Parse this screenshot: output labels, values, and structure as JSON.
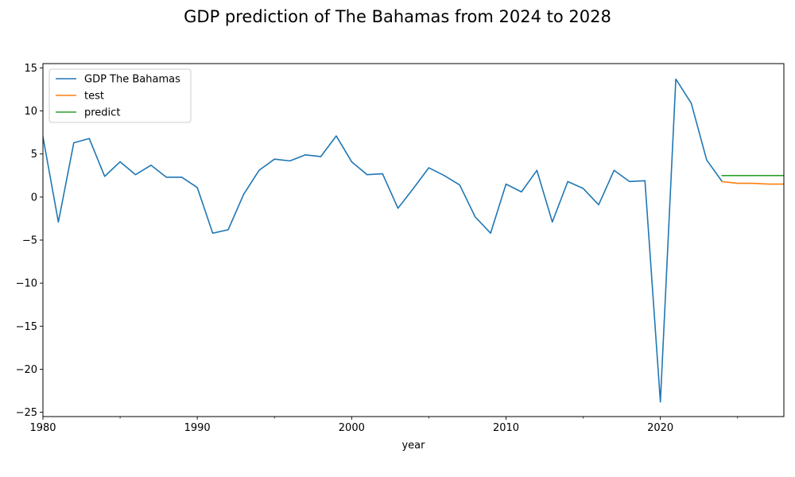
{
  "chart_data": {
    "type": "line",
    "title": "GDP prediction of The Bahamas from 2024 to 2028",
    "xlabel": "year",
    "ylabel": "",
    "xlim": [
      1980,
      2028
    ],
    "ylim": [
      -25.5,
      15.5
    ],
    "xticks": [
      1980,
      1990,
      2000,
      2010,
      2020
    ],
    "xtick_labels": [
      "1980",
      "1990",
      "2000",
      "2010",
      "2020"
    ],
    "x_minor_ticks": [
      1985,
      1995,
      2005,
      2015,
      2025
    ],
    "yticks": [
      -25,
      -20,
      -15,
      -10,
      -5,
      0,
      5,
      10,
      15
    ],
    "ytick_labels": [
      "−25",
      "−20",
      "−15",
      "−10",
      "−5",
      "0",
      "5",
      "10",
      "15"
    ],
    "grid": false,
    "legend_position": "top-left",
    "series": [
      {
        "name": "GDP The Bahamas",
        "color": "#1f77b4",
        "x": [
          1980,
          1981,
          1982,
          1983,
          1984,
          1985,
          1986,
          1987,
          1988,
          1989,
          1990,
          1991,
          1992,
          1993,
          1994,
          1995,
          1996,
          1997,
          1998,
          1999,
          2000,
          2001,
          2002,
          2003,
          2004,
          2005,
          2006,
          2007,
          2008,
          2009,
          2010,
          2011,
          2012,
          2013,
          2014,
          2015,
          2016,
          2017,
          2018,
          2019,
          2020,
          2021,
          2022,
          2023,
          2024
        ],
        "y": [
          7.0,
          -2.9,
          6.3,
          6.8,
          2.4,
          4.1,
          2.6,
          3.7,
          2.3,
          2.3,
          1.1,
          -4.2,
          -3.8,
          0.3,
          3.1,
          4.4,
          4.2,
          4.9,
          4.7,
          7.1,
          4.1,
          2.6,
          2.7,
          -1.3,
          1.0,
          3.4,
          2.5,
          1.4,
          -2.3,
          -4.2,
          1.5,
          0.6,
          3.1,
          -2.9,
          1.8,
          1.0,
          -0.9,
          3.1,
          1.8,
          1.9,
          -23.8,
          13.7,
          10.9,
          4.3,
          1.8
        ]
      },
      {
        "name": "test",
        "color": "#ff7f0e",
        "x": [
          2024,
          2025,
          2026,
          2027,
          2028
        ],
        "y": [
          1.8,
          1.6,
          1.6,
          1.5,
          1.5
        ]
      },
      {
        "name": "predict",
        "color": "#2ca02c",
        "x": [
          2024,
          2025,
          2026,
          2027,
          2028
        ],
        "y": [
          2.5,
          2.5,
          2.5,
          2.5,
          2.5
        ]
      }
    ]
  }
}
